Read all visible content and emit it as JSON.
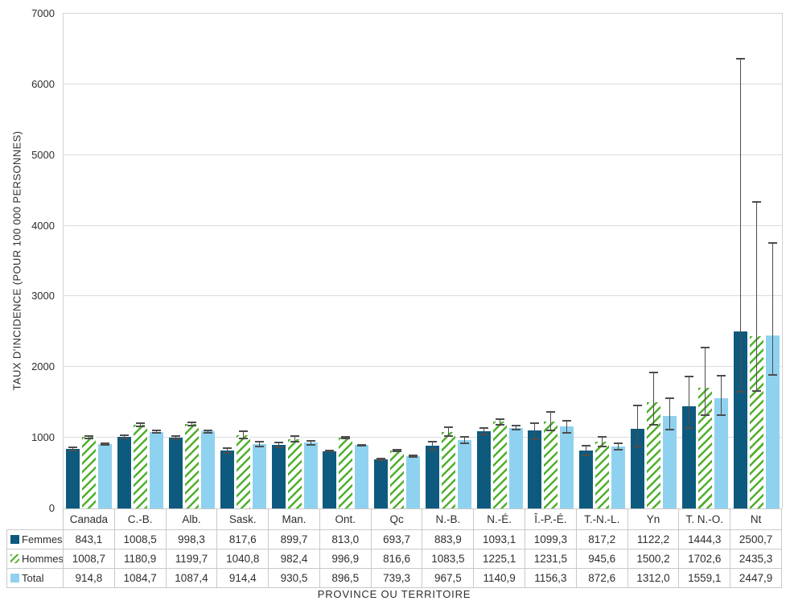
{
  "figure": {
    "y_axis_title": "TAUX D'INCIDENCE (POUR 100 000 PERSONNES)",
    "x_axis_title": "PROVINCE OU TERRITOIRE"
  },
  "y_axis": {
    "ticks": [
      0,
      1000,
      2000,
      3000,
      4000,
      5000,
      6000,
      7000
    ]
  },
  "chart_data": {
    "type": "bar",
    "title": "",
    "xlabel": "PROVINCE OU TERRITOIRE",
    "ylabel": "TAUX D'INCIDENCE (POUR 100 000 PERSONNES)",
    "ylim": [
      0,
      7000
    ],
    "grid": true,
    "legend_position": "table-left-column",
    "value_format": "fr-decimal-comma",
    "categories": [
      "Canada",
      "C.-B.",
      "Alb.",
      "Sask.",
      "Man.",
      "Ont.",
      "Qc",
      "N.-B.",
      "N.-É.",
      "Î.-P.-É.",
      "T.-N.-L.",
      "Yn",
      "T. N.-O.",
      "Nt"
    ],
    "series": [
      {
        "name": "Femmes",
        "pattern": "solid",
        "color": "#0e5a7e",
        "values": [
          843.1,
          1008.5,
          998.3,
          817.6,
          899.7,
          813.0,
          693.7,
          883.9,
          1093.1,
          1099.3,
          817.2,
          1122.2,
          1444.3,
          2500.7
        ],
        "error_low": [
          825,
          985,
          975,
          780,
          870,
          803,
          682,
          826,
          1049,
          980,
          750,
          875,
          1136,
          1648
        ],
        "error_high": [
          861,
          1032,
          1022,
          855,
          930,
          823,
          706,
          942,
          1137,
          1205,
          885,
          1455,
          1863,
          6364
        ]
      },
      {
        "name": "Hommes",
        "pattern": "hatched",
        "color": "#4fb02b",
        "values": [
          1008.7,
          1180.9,
          1199.7,
          1040.8,
          982.4,
          996.9,
          816.6,
          1083.5,
          1225.1,
          1231.5,
          945.6,
          1500.2,
          1702.6,
          2435.3
        ],
        "error_low": [
          993,
          1160,
          1178,
          985,
          940,
          985,
          803,
          1020,
          1185,
          1100,
          880,
          1182,
          1318,
          1660
        ],
        "error_high": [
          1024,
          1202,
          1221,
          1097,
          1025,
          1009,
          830,
          1147,
          1265,
          1363,
          1011,
          1920,
          2273,
          4341
        ]
      },
      {
        "name": "Total",
        "pattern": "solid",
        "color": "#8fd2f0",
        "values": [
          914.8,
          1084.7,
          1087.4,
          914.4,
          930.5,
          896.5,
          739.3,
          967.5,
          1140.9,
          1156.3,
          872.6,
          1312.0,
          1559.1,
          2447.9
        ],
        "error_low": [
          905,
          1070,
          1073,
          880,
          903,
          889,
          731,
          924,
          1111,
          1070,
          826,
          1114,
          1318,
          1886
        ],
        "error_high": [
          925,
          1100,
          1102,
          949,
          958,
          904,
          748,
          1011,
          1171,
          1240,
          919,
          1557,
          1875,
          3761
        ]
      }
    ]
  },
  "colors": {
    "femmes": "#0e5a7e",
    "hommes_stripe": "#4fb02b",
    "total": "#8fd2f0",
    "error_bar": "#4d4d4d",
    "gridline": "#dcdcdc",
    "table_border": "#c9c9c9",
    "text": "#2e2e2e"
  }
}
